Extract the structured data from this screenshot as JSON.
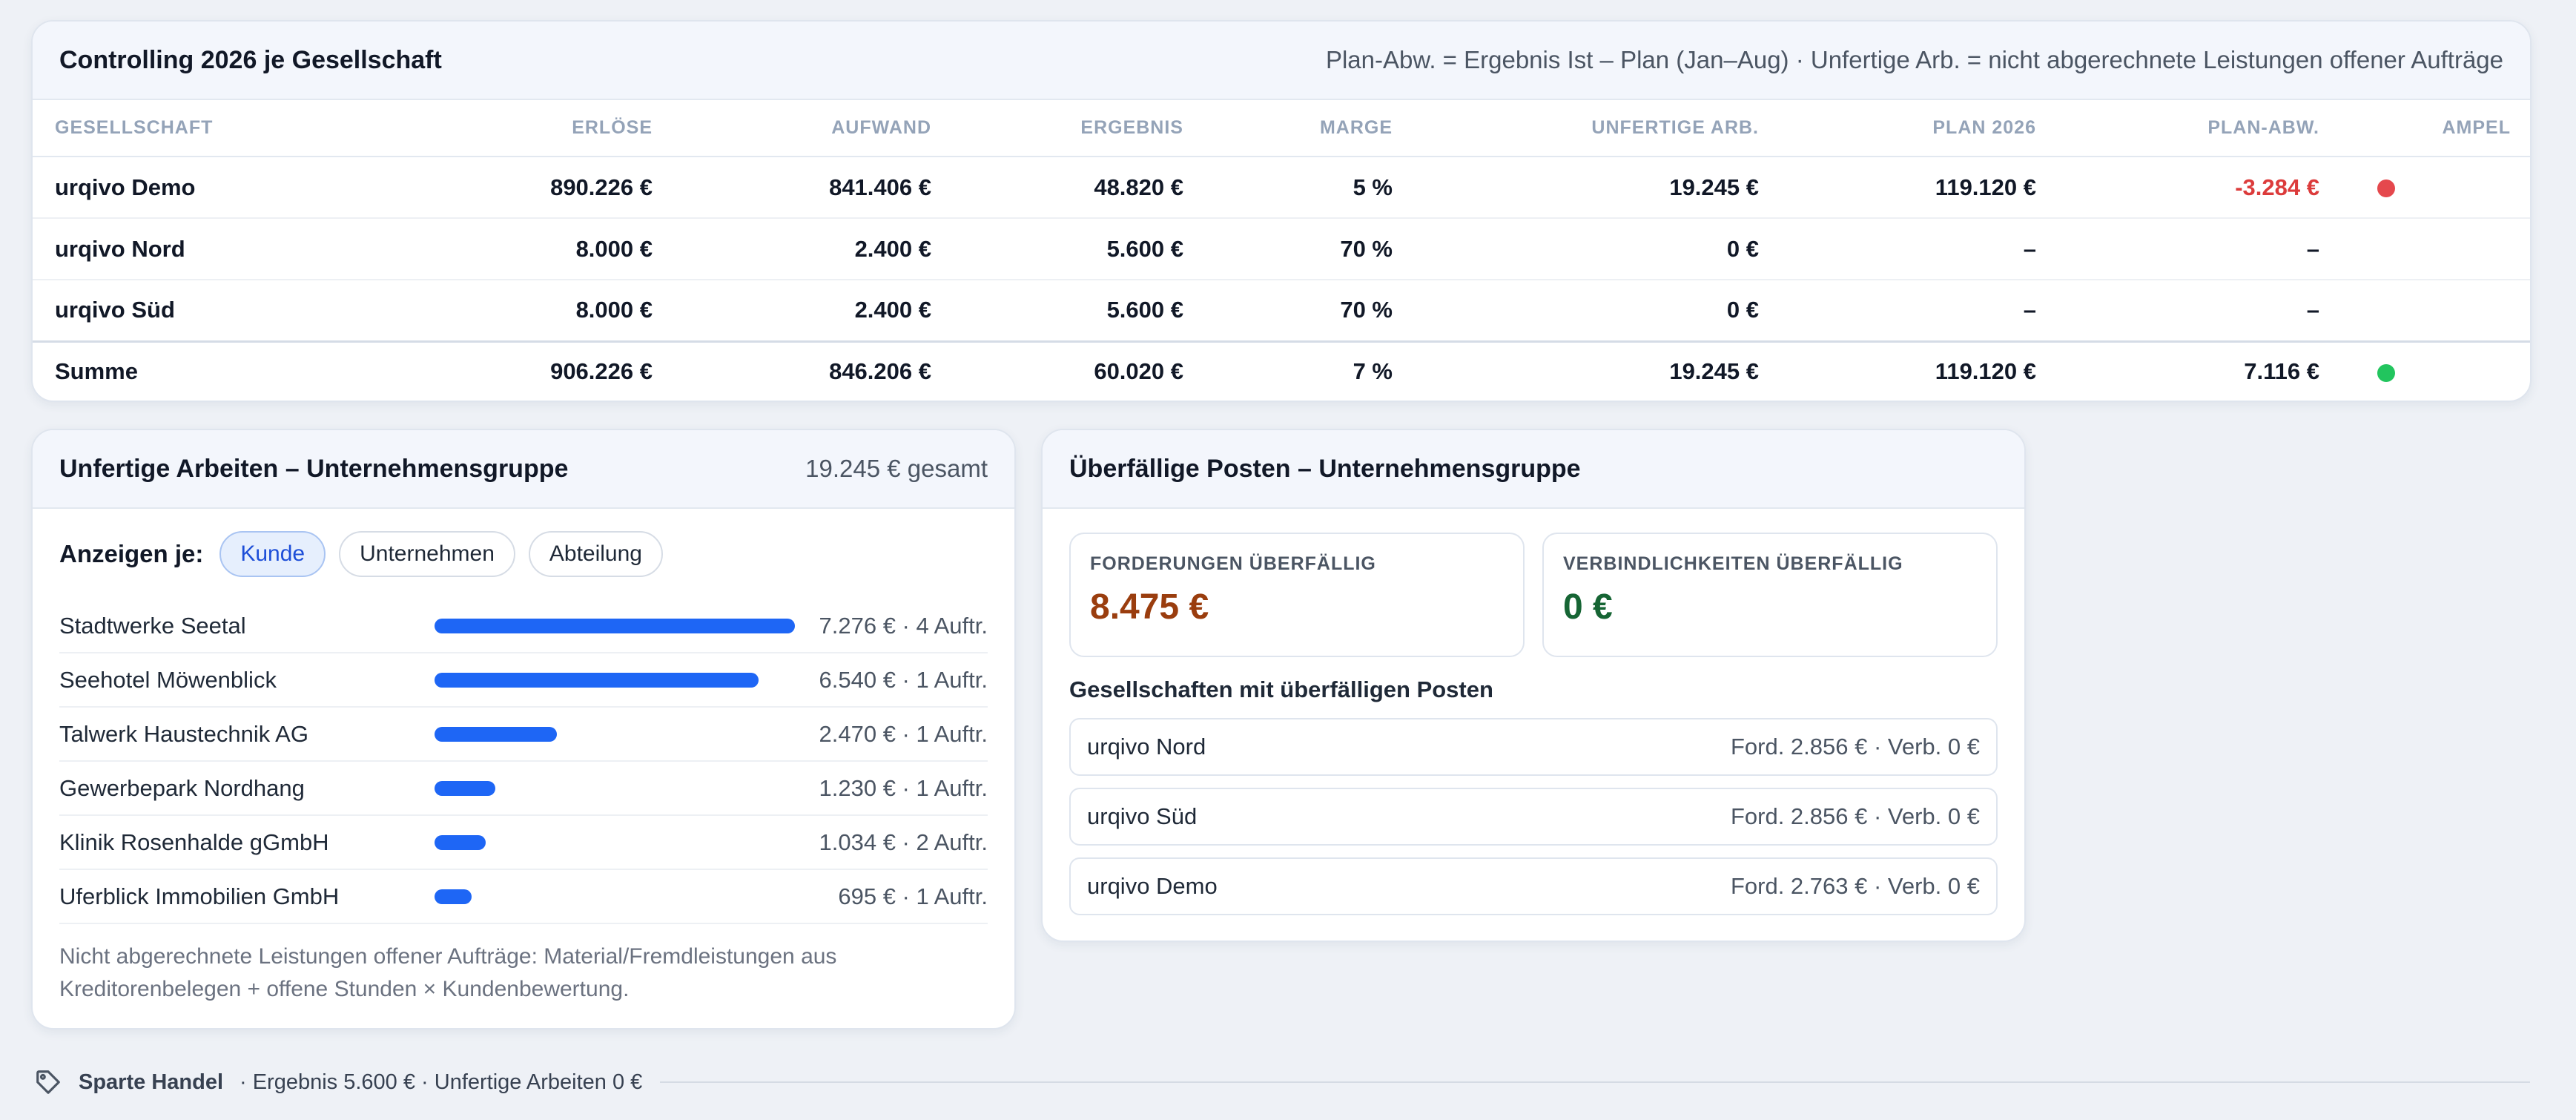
{
  "controlling": {
    "title": "Controlling 2026 je Gesellschaft",
    "note": "Plan‑Abw. = Ergebnis Ist – Plan (Jan–Aug) · Unfertige Arb. = nicht abgerechnete Leistungen offener Aufträge",
    "columns": [
      "Gesellschaft",
      "Erlöse",
      "Aufwand",
      "Ergebnis",
      "Marge",
      "Unfertige Arb.",
      "Plan 2026",
      "Plan-Abw.",
      "Ampel"
    ],
    "rows": [
      {
        "name": "urqivo Demo",
        "erloese": "890.226 €",
        "aufwand": "841.406 €",
        "ergebnis": "48.820 €",
        "marge": "5 %",
        "unfertig": "19.245 €",
        "plan": "119.120 €",
        "abw": "-3.284 €",
        "ampel": "#e5484d"
      },
      {
        "name": "urqivo Nord",
        "erloese": "8.000 €",
        "aufwand": "2.400 €",
        "ergebnis": "5.600 €",
        "marge": "70 %",
        "unfertig": "0 €",
        "plan": "–",
        "abw": "–",
        "ampel": ""
      },
      {
        "name": "urqivo Süd",
        "erloese": "8.000 €",
        "aufwand": "2.400 €",
        "ergebnis": "5.600 €",
        "marge": "70 %",
        "unfertig": "0 €",
        "plan": "–",
        "abw": "–",
        "ampel": ""
      }
    ],
    "sum": {
      "name": "Summe",
      "erloese": "906.226 €",
      "aufwand": "846.206 €",
      "ergebnis": "60.020 €",
      "marge": "7 %",
      "unfertig": "19.245 €",
      "plan": "119.120 €",
      "abw": "7.116 €",
      "ampel": "#22c55e"
    }
  },
  "wip": {
    "title": "Unfertige Arbeiten – Unternehmensgruppe",
    "total": "19.245 € gesamt",
    "filter_label": "Anzeigen je:",
    "filters": [
      "Kunde",
      "Unternehmen",
      "Abteilung"
    ],
    "active_filter": "Kunde",
    "items": [
      {
        "name": "Stadtwerke Seetal",
        "value": 7276,
        "label": "7.276 € · 4 Auftr."
      },
      {
        "name": "Seehotel Möwenblick",
        "value": 6540,
        "label": "6.540 € · 1 Auftr."
      },
      {
        "name": "Talwerk Haustechnik AG",
        "value": 2470,
        "label": "2.470 € · 1 Auftr."
      },
      {
        "name": "Gewerbepark Nordhang",
        "value": 1230,
        "label": "1.230 € · 1 Auftr."
      },
      {
        "name": "Klinik Rosenhalde gGmbH",
        "value": 1034,
        "label": "1.034 € · 2 Auftr."
      },
      {
        "name": "Uferblick Immobilien GmbH",
        "value": 695,
        "label": "695 € · 1 Auftr."
      }
    ],
    "bar_color": "#1e66f5",
    "footnote": "Nicht abgerechnete Leistungen offener Aufträge: Material/Fremdleistungen aus Kreditorenbelegen + offene Stunden × Kundenbewertung."
  },
  "overdue": {
    "title": "Überfällige Posten – Unternehmensgruppe",
    "forderungen_label": "Forderungen überfällig",
    "forderungen_value": "8.475 €",
    "forderungen_color": "#9a3d0e",
    "verbindlichkeiten_label": "Verbindlichkeiten überfällig",
    "verbindlichkeiten_value": "0 €",
    "verbindlichkeiten_color": "#166534",
    "subtitle": "Gesellschaften mit überfälligen Posten",
    "items": [
      {
        "name": "urqivo Nord",
        "values": "Ford. 2.856 € · Verb. 0 €"
      },
      {
        "name": "urqivo Süd",
        "values": "Ford. 2.856 € · Verb. 0 €"
      },
      {
        "name": "urqivo Demo",
        "values": "Ford. 2.763 € · Verb. 0 €"
      }
    ]
  },
  "footer": {
    "icon": "tag-icon",
    "title": "Sparte Handel",
    "text": "· Ergebnis 5.600 € · Unfertige Arbeiten 0 €"
  }
}
